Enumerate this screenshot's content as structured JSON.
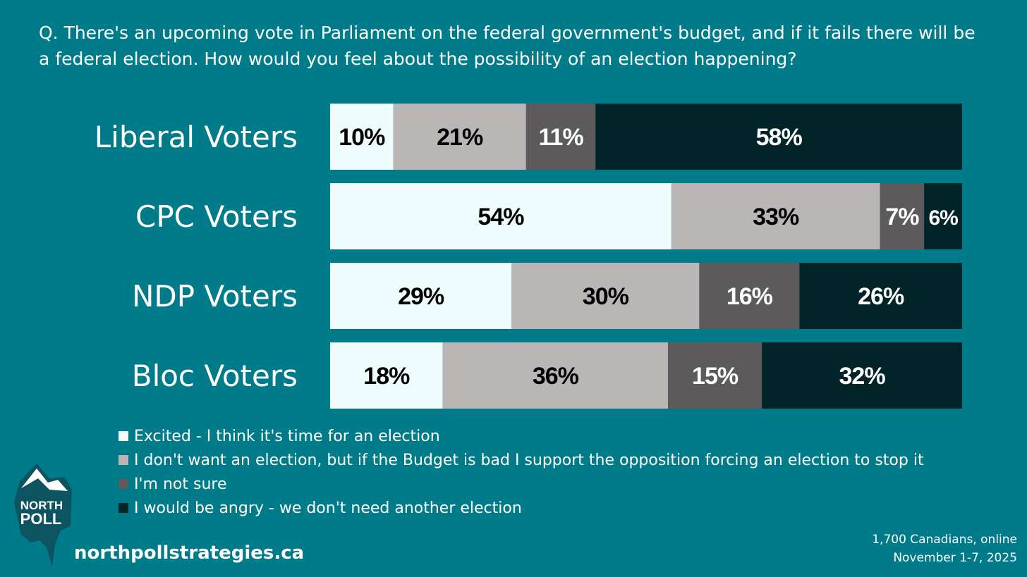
{
  "question": "Q. There's an upcoming vote in Parliament on the federal government's budget, and if it fails there will be a federal election. How would you feel about the possibility of an election happening?",
  "chart_data": {
    "type": "bar",
    "orientation": "horizontal",
    "stacked": true,
    "categories": [
      "Liberal Voters",
      "CPC Voters",
      "NDP Voters",
      "Bloc Voters"
    ],
    "series": [
      {
        "name": "Excited - I think it's time for an election",
        "color": "#effcfd",
        "label_color": "#000000",
        "values": [
          10,
          54,
          29,
          18
        ]
      },
      {
        "name": "I don't want an election, but if the Budget is bad I support the opposition forcing an election to stop it",
        "color": "#bab6b5",
        "label_color": "#000000",
        "values": [
          21,
          33,
          30,
          36
        ]
      },
      {
        "name": "I'm not sure",
        "color": "#5c5a5a",
        "label_color": "#ffffff",
        "values": [
          11,
          7,
          16,
          15
        ]
      },
      {
        "name": "I would be angry - we don't need another election",
        "color": "#002427",
        "label_color": "#ffffff",
        "values": [
          58,
          6,
          26,
          32
        ]
      }
    ],
    "unit": "%",
    "legend_position": "bottom"
  },
  "logo": {
    "line1": "NORTH",
    "line2": "POLL"
  },
  "website": "northpollstrategies.ca",
  "footnote": {
    "sample": "1,700 Canadians, online",
    "dates": "November 1-7, 2025"
  },
  "colors": {
    "background": "#007b8a"
  }
}
